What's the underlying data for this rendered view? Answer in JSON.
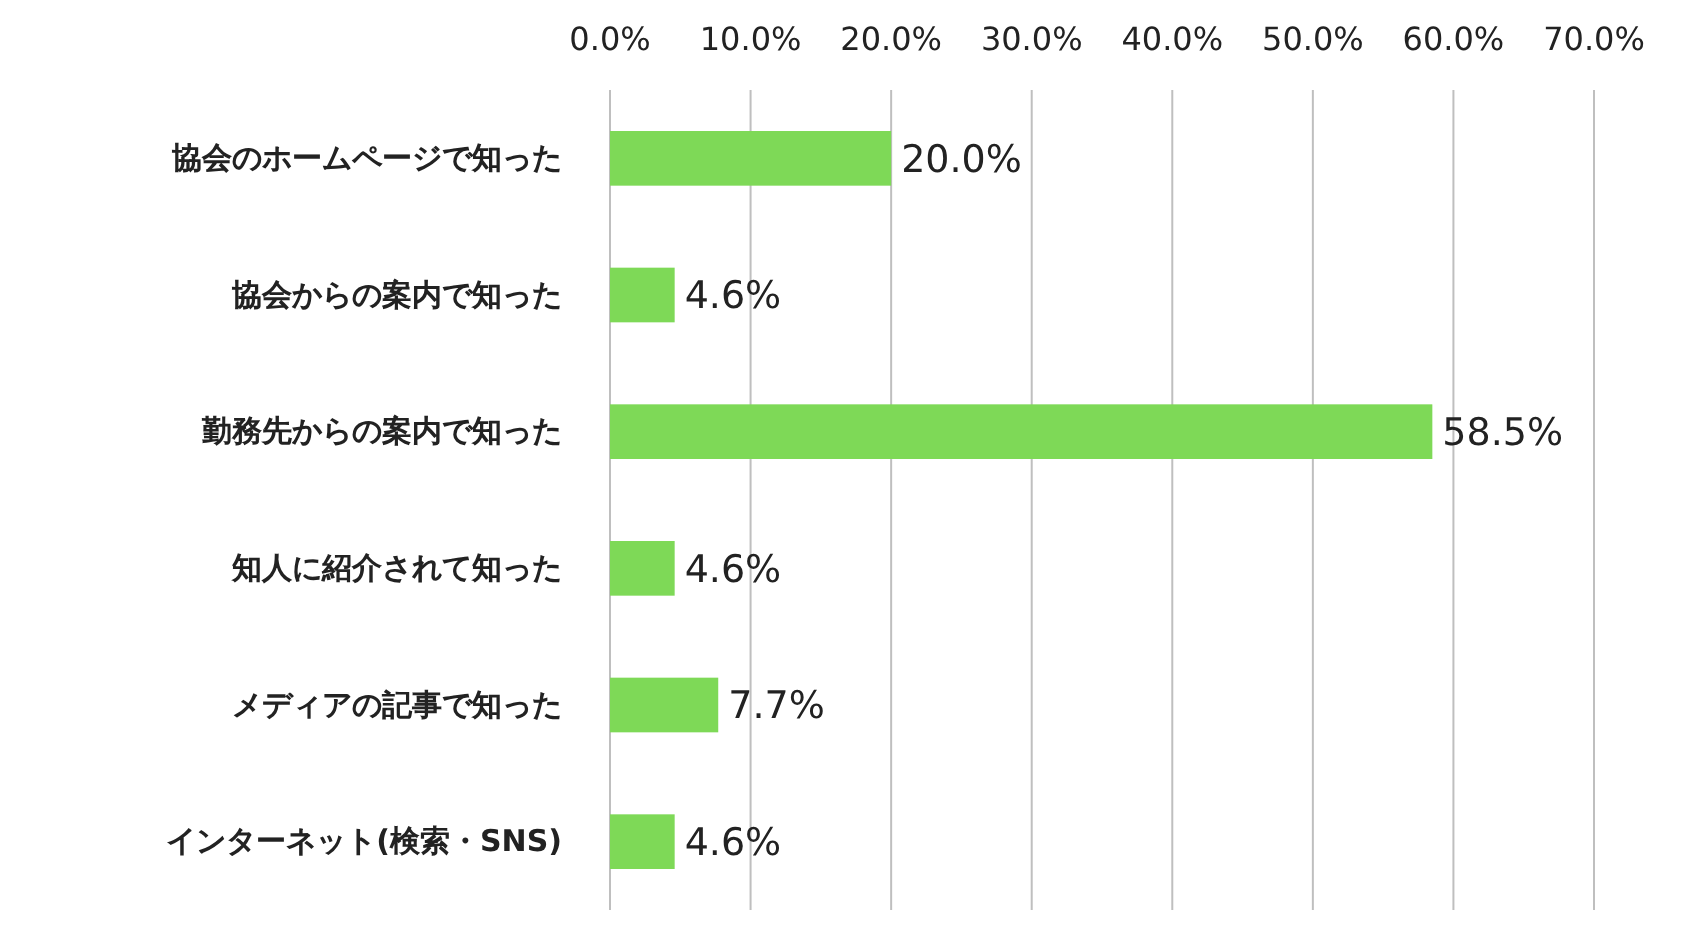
{
  "chart_data": {
    "type": "bar",
    "orientation": "horizontal",
    "categories": [
      "協会のホームページで知った",
      "協会からの案内で知った",
      "勤務先からの案内で知った",
      "知人に紹介されて知った",
      "メディアの記事で知った",
      "インターネット(検索・SNS)"
    ],
    "values": [
      20.0,
      4.6,
      58.5,
      4.6,
      7.7,
      4.6
    ],
    "value_labels": [
      "20.0%",
      "4.6%",
      "58.5%",
      "4.6%",
      "7.7%",
      "4.6%"
    ],
    "color": "#7ed957",
    "xlim": [
      0,
      70
    ],
    "xticks": [
      {
        "value": 0,
        "label": "0.0%"
      },
      {
        "value": 10,
        "label": "10.0%"
      },
      {
        "value": 20,
        "label": "20.0%"
      },
      {
        "value": 30,
        "label": "30.0%"
      },
      {
        "value": 40,
        "label": "40.0%"
      },
      {
        "value": 50,
        "label": "50.0%"
      },
      {
        "value": 60,
        "label": "60.0%"
      },
      {
        "value": 70,
        "label": "70.0%"
      }
    ],
    "grid": "x"
  }
}
